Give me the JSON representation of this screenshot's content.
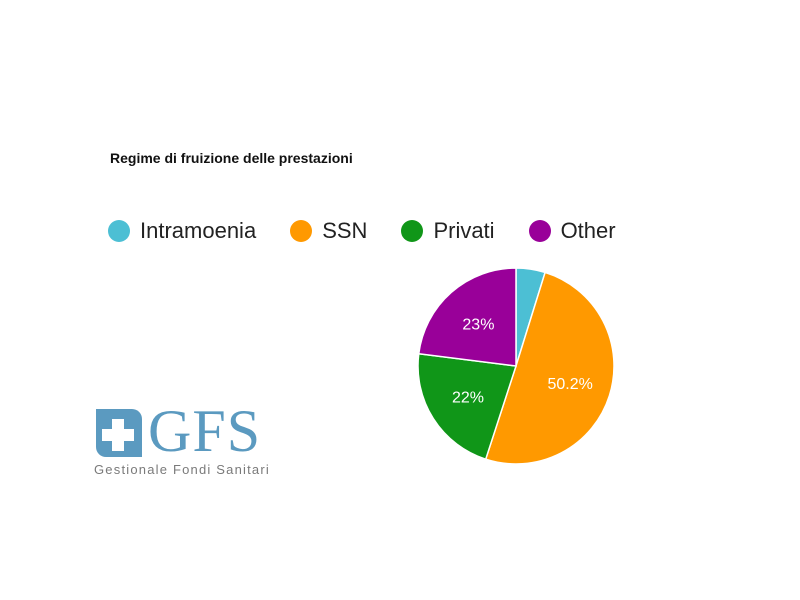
{
  "chart_data": {
    "type": "pie",
    "title": "Regime di fruizione delle prestazioni",
    "legend_position": "top",
    "slices": [
      {
        "name": "Intramoenia",
        "value": 4.8,
        "label": "",
        "color": "#4cbfd4"
      },
      {
        "name": "SSN",
        "value": 50.2,
        "label": "50.2%",
        "color": "#ff9900"
      },
      {
        "name": "Privati",
        "value": 22,
        "label": "22%",
        "color": "#109618"
      },
      {
        "name": "Other",
        "value": 23,
        "label": "23%",
        "color": "#990099"
      }
    ]
  },
  "logo": {
    "mark_icon": "medical-cross-icon",
    "wordmark": "GFS",
    "tagline": "Gestionale Fondi Sanitari",
    "color": "#5b9ac0"
  }
}
